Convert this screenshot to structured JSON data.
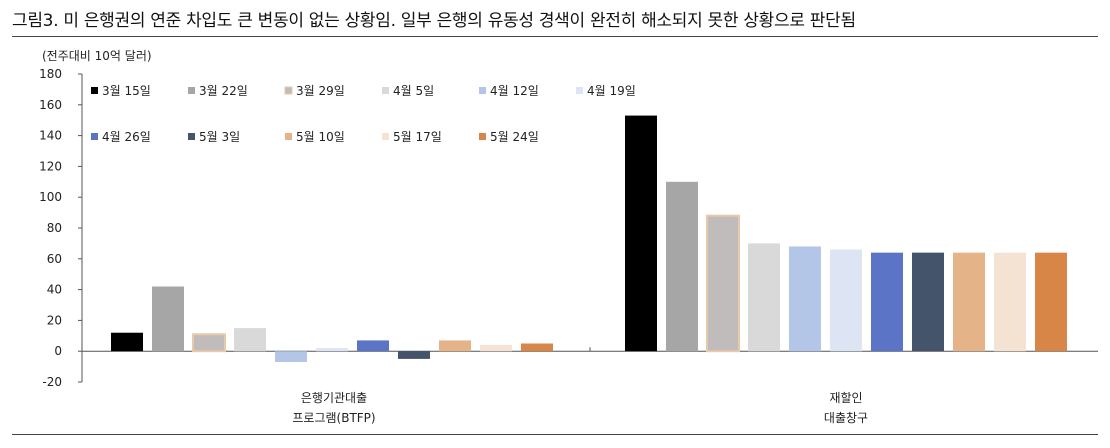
{
  "figure": {
    "title": "그림3.  미 은행권의 연준 차입도 큰 변동이 없는 상황임. 일부 은행의 유동성 경색이 완전히 해소되지 못한 상황으로 판단됨"
  },
  "chart_data": {
    "type": "bar",
    "unit_label": "(전주대비 10억 달러)",
    "ylim": [
      -20,
      180
    ],
    "yticks": [
      -20,
      0,
      20,
      40,
      60,
      80,
      100,
      120,
      140,
      160,
      180
    ],
    "grid": false,
    "legend_position": "top-left",
    "categories": [
      {
        "lines": [
          "은행기관대출",
          "프로그램(BTFP)"
        ]
      },
      {
        "lines": [
          "재할인",
          "대출창구"
        ]
      }
    ],
    "series": [
      {
        "name": "3월 15일",
        "color": "#000000",
        "values": [
          12,
          153
        ]
      },
      {
        "name": "3월 22일",
        "color": "#a6a6a6",
        "values": [
          42,
          110
        ]
      },
      {
        "name": "3월 29일",
        "color": "#c0bcbc",
        "border": "#e8c9a8",
        "values": [
          11,
          88
        ]
      },
      {
        "name": "4월 5일",
        "color": "#d9d9d9",
        "values": [
          15,
          70
        ]
      },
      {
        "name": "4월 12일",
        "color": "#b4c6e7",
        "values": [
          -7,
          68
        ]
      },
      {
        "name": "4월 19일",
        "color": "#dde4f3",
        "values": [
          2,
          66
        ]
      },
      {
        "name": "4월 26일",
        "color": "#5b74c5",
        "values": [
          7,
          64
        ]
      },
      {
        "name": "5월 3일",
        "color": "#44546a",
        "values": [
          -5,
          64
        ]
      },
      {
        "name": "5월 10일",
        "color": "#e5b388",
        "values": [
          7,
          64
        ]
      },
      {
        "name": "5월 17일",
        "color": "#f4e3d3",
        "values": [
          4,
          64
        ]
      },
      {
        "name": "5월 24일",
        "color": "#d88548",
        "values": [
          5,
          64
        ]
      }
    ]
  }
}
